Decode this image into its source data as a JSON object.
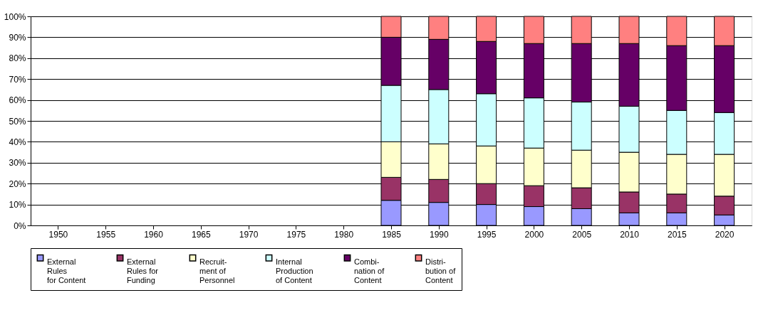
{
  "chart_data": {
    "type": "bar",
    "stacked": true,
    "categories": [
      "1950",
      "1955",
      "1960",
      "1965",
      "1970",
      "1975",
      "1980",
      "1985",
      "1990",
      "1995",
      "2000",
      "2005",
      "2010",
      "2015",
      "2020"
    ],
    "series": [
      {
        "name": "External\nRules\nfor Content",
        "color": "#9999ff",
        "values": [
          null,
          null,
          null,
          null,
          null,
          null,
          null,
          12,
          11,
          10,
          9,
          8,
          6,
          6,
          5
        ]
      },
      {
        "name": "External\nRules for\nFunding",
        "color": "#993366",
        "values": [
          null,
          null,
          null,
          null,
          null,
          null,
          null,
          11,
          11,
          10,
          10,
          10,
          10,
          9,
          9
        ]
      },
      {
        "name": "Recruit-\nment of\nPersonnel",
        "color": "#ffffcc",
        "values": [
          null,
          null,
          null,
          null,
          null,
          null,
          null,
          17,
          17,
          18,
          18,
          18,
          19,
          19,
          20
        ]
      },
      {
        "name": "Internal\nProduction\nof Content",
        "color": "#ccffff",
        "values": [
          null,
          null,
          null,
          null,
          null,
          null,
          null,
          27,
          26,
          25,
          24,
          23,
          22,
          21,
          20
        ]
      },
      {
        "name": "Combi-\nnation of\nContent",
        "color": "#660066",
        "values": [
          null,
          null,
          null,
          null,
          null,
          null,
          null,
          23,
          24,
          25,
          26,
          28,
          30,
          31,
          32
        ]
      },
      {
        "name": "Distri-\nbution of\nContent",
        "color": "#ff8080",
        "values": [
          null,
          null,
          null,
          null,
          null,
          null,
          null,
          10,
          11,
          12,
          13,
          13,
          13,
          14,
          14
        ]
      }
    ],
    "ylim": [
      0,
      100
    ],
    "yticks": [
      {
        "value": 0,
        "label": "0%"
      },
      {
        "value": 10,
        "label": "10%"
      },
      {
        "value": 20,
        "label": "20%"
      },
      {
        "value": 30,
        "label": "30%"
      },
      {
        "value": 40,
        "label": "40%"
      },
      {
        "value": 50,
        "label": "50%"
      },
      {
        "value": 60,
        "label": "60%"
      },
      {
        "value": 70,
        "label": "70%"
      },
      {
        "value": 80,
        "label": "80%"
      },
      {
        "value": 90,
        "label": "90%"
      },
      {
        "value": 100,
        "label": "100%"
      }
    ],
    "grid": "y",
    "legend": "bottom"
  }
}
